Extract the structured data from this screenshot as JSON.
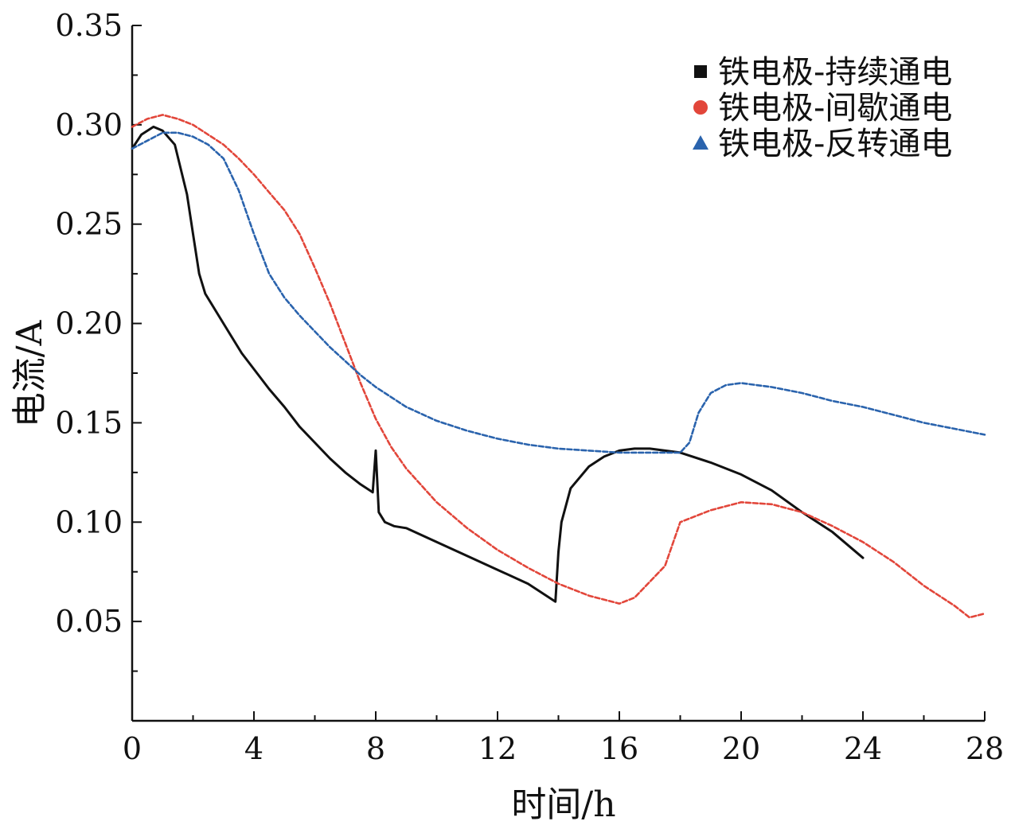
{
  "chart_data": {
    "type": "line",
    "xlabel": "时间/h",
    "ylabel": "电流/A",
    "xlim": [
      0,
      28
    ],
    "ylim": [
      0,
      0.35
    ],
    "x_ticks": [
      "0",
      "4",
      "8",
      "12",
      "16",
      "20",
      "24",
      "28"
    ],
    "y_ticks": [
      "0.05",
      "0.10",
      "0.15",
      "0.20",
      "0.25",
      "0.30",
      "0.35"
    ],
    "legend_position": "top-right",
    "grid": false,
    "series": [
      {
        "name": "铁电极-持续通电",
        "color": "#111111",
        "marker": "square",
        "x": [
          0,
          0.3,
          0.7,
          1.0,
          1.4,
          1.8,
          2.0,
          2.2,
          2.4,
          2.8,
          3.2,
          3.6,
          4.0,
          4.5,
          5.0,
          5.5,
          6.0,
          6.5,
          7.0,
          7.5,
          7.9,
          8.0,
          8.1,
          8.3,
          8.6,
          9.0,
          10.0,
          11.0,
          12.0,
          13.0,
          13.9,
          14.0,
          14.1,
          14.4,
          15.0,
          15.5,
          16.0,
          16.5,
          17.0,
          18.0,
          19.0,
          20.0,
          21.0,
          22.0,
          23.0,
          24.0
        ],
        "y": [
          0.288,
          0.295,
          0.299,
          0.297,
          0.29,
          0.265,
          0.245,
          0.225,
          0.215,
          0.205,
          0.195,
          0.185,
          0.177,
          0.167,
          0.158,
          0.148,
          0.14,
          0.132,
          0.125,
          0.119,
          0.115,
          0.136,
          0.105,
          0.1,
          0.098,
          0.097,
          0.09,
          0.083,
          0.076,
          0.069,
          0.06,
          0.085,
          0.1,
          0.117,
          0.128,
          0.133,
          0.136,
          0.137,
          0.137,
          0.135,
          0.13,
          0.124,
          0.116,
          0.105,
          0.095,
          0.082
        ]
      },
      {
        "name": "铁电极-间歇通电",
        "color": "#e2463a",
        "marker": "circle",
        "x": [
          0,
          0.5,
          1.0,
          1.5,
          2.0,
          2.5,
          3.0,
          3.5,
          4.0,
          4.5,
          5.0,
          5.5,
          6.0,
          6.5,
          7.0,
          7.5,
          8.0,
          8.5,
          9.0,
          10.0,
          11.0,
          12.0,
          13.0,
          14.0,
          15.0,
          16.0,
          16.5,
          17.0,
          17.5,
          18.0,
          19.0,
          20.0,
          21.0,
          22.0,
          23.0,
          24.0,
          25.0,
          26.0,
          27.0,
          27.5,
          28.0
        ],
        "y": [
          0.299,
          0.303,
          0.305,
          0.303,
          0.3,
          0.295,
          0.29,
          0.283,
          0.275,
          0.266,
          0.257,
          0.245,
          0.228,
          0.21,
          0.19,
          0.17,
          0.152,
          0.138,
          0.127,
          0.11,
          0.097,
          0.086,
          0.077,
          0.069,
          0.063,
          0.059,
          0.062,
          0.07,
          0.078,
          0.1,
          0.106,
          0.11,
          0.109,
          0.105,
          0.098,
          0.09,
          0.08,
          0.068,
          0.058,
          0.052,
          0.054
        ]
      },
      {
        "name": "铁电极-反转通电",
        "color": "#2a63ad",
        "marker": "triangle",
        "x": [
          0,
          0.5,
          1.0,
          1.5,
          2.0,
          2.5,
          3.0,
          3.5,
          4.0,
          4.5,
          5.0,
          5.5,
          6.0,
          6.5,
          7.0,
          7.5,
          8.0,
          8.5,
          9.0,
          10.0,
          11.0,
          12.0,
          13.0,
          14.0,
          15.0,
          16.0,
          17.0,
          18.0,
          18.3,
          18.6,
          19.0,
          19.5,
          20.0,
          21.0,
          22.0,
          23.0,
          24.0,
          25.0,
          26.0,
          27.0,
          28.0
        ],
        "y": [
          0.288,
          0.292,
          0.296,
          0.296,
          0.294,
          0.29,
          0.283,
          0.267,
          0.245,
          0.225,
          0.213,
          0.204,
          0.196,
          0.188,
          0.181,
          0.174,
          0.168,
          0.163,
          0.158,
          0.151,
          0.146,
          0.142,
          0.139,
          0.137,
          0.136,
          0.135,
          0.135,
          0.135,
          0.14,
          0.155,
          0.165,
          0.169,
          0.17,
          0.168,
          0.165,
          0.161,
          0.158,
          0.154,
          0.15,
          0.147,
          0.144
        ]
      }
    ]
  }
}
